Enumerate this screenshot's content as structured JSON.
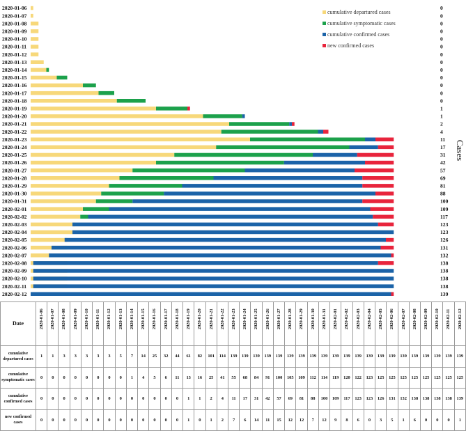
{
  "chart_data": {
    "type": "bar",
    "orientation": "horizontal",
    "stacked": true,
    "categories": [
      "2020-01-06",
      "2020-01-07",
      "2020-01-08",
      "2020-01-09",
      "2020-01-10",
      "2020-01-11",
      "2020-01-12",
      "2020-01-13",
      "2020-01-14",
      "2020-01-15",
      "2020-01-16",
      "2020-01-17",
      "2020-01-18",
      "2020-01-19",
      "2020-01-20",
      "2020-01-21",
      "2020-01-22",
      "2020-01-23",
      "2020-01-24",
      "2020-01-25",
      "2020-01-26",
      "2020-01-27",
      "2020-01-28",
      "2020-01-29",
      "2020-01-30",
      "2020-01-31",
      "2020-02-01",
      "2020-02-02",
      "2020-02-03",
      "2020-02-04",
      "2020-02-05",
      "2020-02-06",
      "2020-02-07",
      "2020-02-08",
      "2020-02-09",
      "2020-02-10",
      "2020-02-11",
      "2020-02-12"
    ],
    "series": [
      {
        "name": "cumulative departured cases",
        "color": "#F7D87A",
        "values": [
          1,
          1,
          3,
          3,
          3,
          3,
          3,
          5,
          7,
          14,
          25,
          32,
          44,
          61,
          82,
          101,
          114,
          139,
          139,
          139,
          139,
          139,
          139,
          139,
          139,
          139,
          139,
          139,
          139,
          139,
          139,
          139,
          139,
          139,
          139,
          139,
          139,
          139
        ]
      },
      {
        "name": "cumulative symptomatic cases",
        "color": "#1CA14B",
        "values": [
          0,
          0,
          0,
          0,
          0,
          0,
          0,
          0,
          1,
          4,
          5,
          6,
          11,
          13,
          16,
          25,
          41,
          55,
          68,
          84,
          91,
          100,
          105,
          109,
          112,
          114,
          119,
          120,
          122,
          123,
          125,
          125,
          125,
          125,
          125,
          125,
          125,
          125
        ]
      },
      {
        "name": "cumulative confirmed cases",
        "color": "#1B63A8",
        "values": [
          0,
          0,
          0,
          0,
          0,
          0,
          0,
          0,
          0,
          0,
          0,
          0,
          0,
          1,
          1,
          2,
          4,
          11,
          17,
          31,
          42,
          57,
          69,
          81,
          88,
          100,
          109,
          117,
          123,
          123,
          126,
          131,
          132,
          138,
          138,
          138,
          138,
          139
        ]
      },
      {
        "name": "new confirmed cases",
        "color": "#E8243C",
        "values": [
          0,
          0,
          0,
          0,
          0,
          0,
          0,
          0,
          0,
          0,
          0,
          0,
          0,
          1,
          0,
          1,
          2,
          7,
          6,
          14,
          11,
          15,
          12,
          12,
          7,
          12,
          9,
          8,
          6,
          0,
          3,
          5,
          1,
          6,
          0,
          0,
          0,
          1
        ]
      }
    ],
    "right_labels": [
      0,
      0,
      0,
      0,
      0,
      0,
      0,
      0,
      0,
      0,
      0,
      0,
      0,
      1,
      1,
      2,
      4,
      11,
      17,
      31,
      42,
      57,
      69,
      81,
      88,
      100,
      109,
      117,
      123,
      123,
      126,
      131,
      132,
      138,
      138,
      138,
      138,
      139
    ],
    "ylabel": "Cases",
    "legend_position": "top-right"
  },
  "table": {
    "corner_label": "Date",
    "rows": [
      {
        "label": "cumulative departured cases",
        "values": [
          1,
          1,
          3,
          3,
          3,
          3,
          3,
          5,
          7,
          14,
          25,
          32,
          44,
          61,
          82,
          101,
          114,
          139,
          139,
          139,
          139,
          139,
          139,
          139,
          139,
          139,
          139,
          139,
          139,
          139,
          139,
          139,
          139,
          139,
          139,
          139,
          139,
          139
        ]
      },
      {
        "label": "cumulative symptomatic cases",
        "values": [
          0,
          0,
          0,
          0,
          0,
          0,
          0,
          0,
          1,
          4,
          5,
          6,
          11,
          13,
          16,
          25,
          41,
          55,
          68,
          84,
          91,
          100,
          105,
          109,
          112,
          114,
          119,
          120,
          122,
          123,
          125,
          125,
          125,
          125,
          125,
          125,
          125,
          125
        ]
      },
      {
        "label": "cumulative confirmed cases",
        "values": [
          0,
          0,
          0,
          0,
          0,
          0,
          0,
          0,
          0,
          0,
          0,
          0,
          0,
          1,
          1,
          2,
          4,
          11,
          17,
          31,
          42,
          57,
          69,
          81,
          88,
          100,
          109,
          117,
          123,
          123,
          126,
          131,
          132,
          138,
          138,
          138,
          138,
          139
        ]
      },
      {
        "label": "new confirmed cases",
        "values": [
          0,
          0,
          0,
          0,
          0,
          0,
          0,
          0,
          0,
          0,
          0,
          0,
          0,
          1,
          0,
          1,
          2,
          7,
          6,
          14,
          11,
          15,
          12,
          12,
          7,
          12,
          9,
          8,
          6,
          0,
          3,
          5,
          1,
          6,
          0,
          0,
          0,
          1
        ]
      }
    ]
  }
}
